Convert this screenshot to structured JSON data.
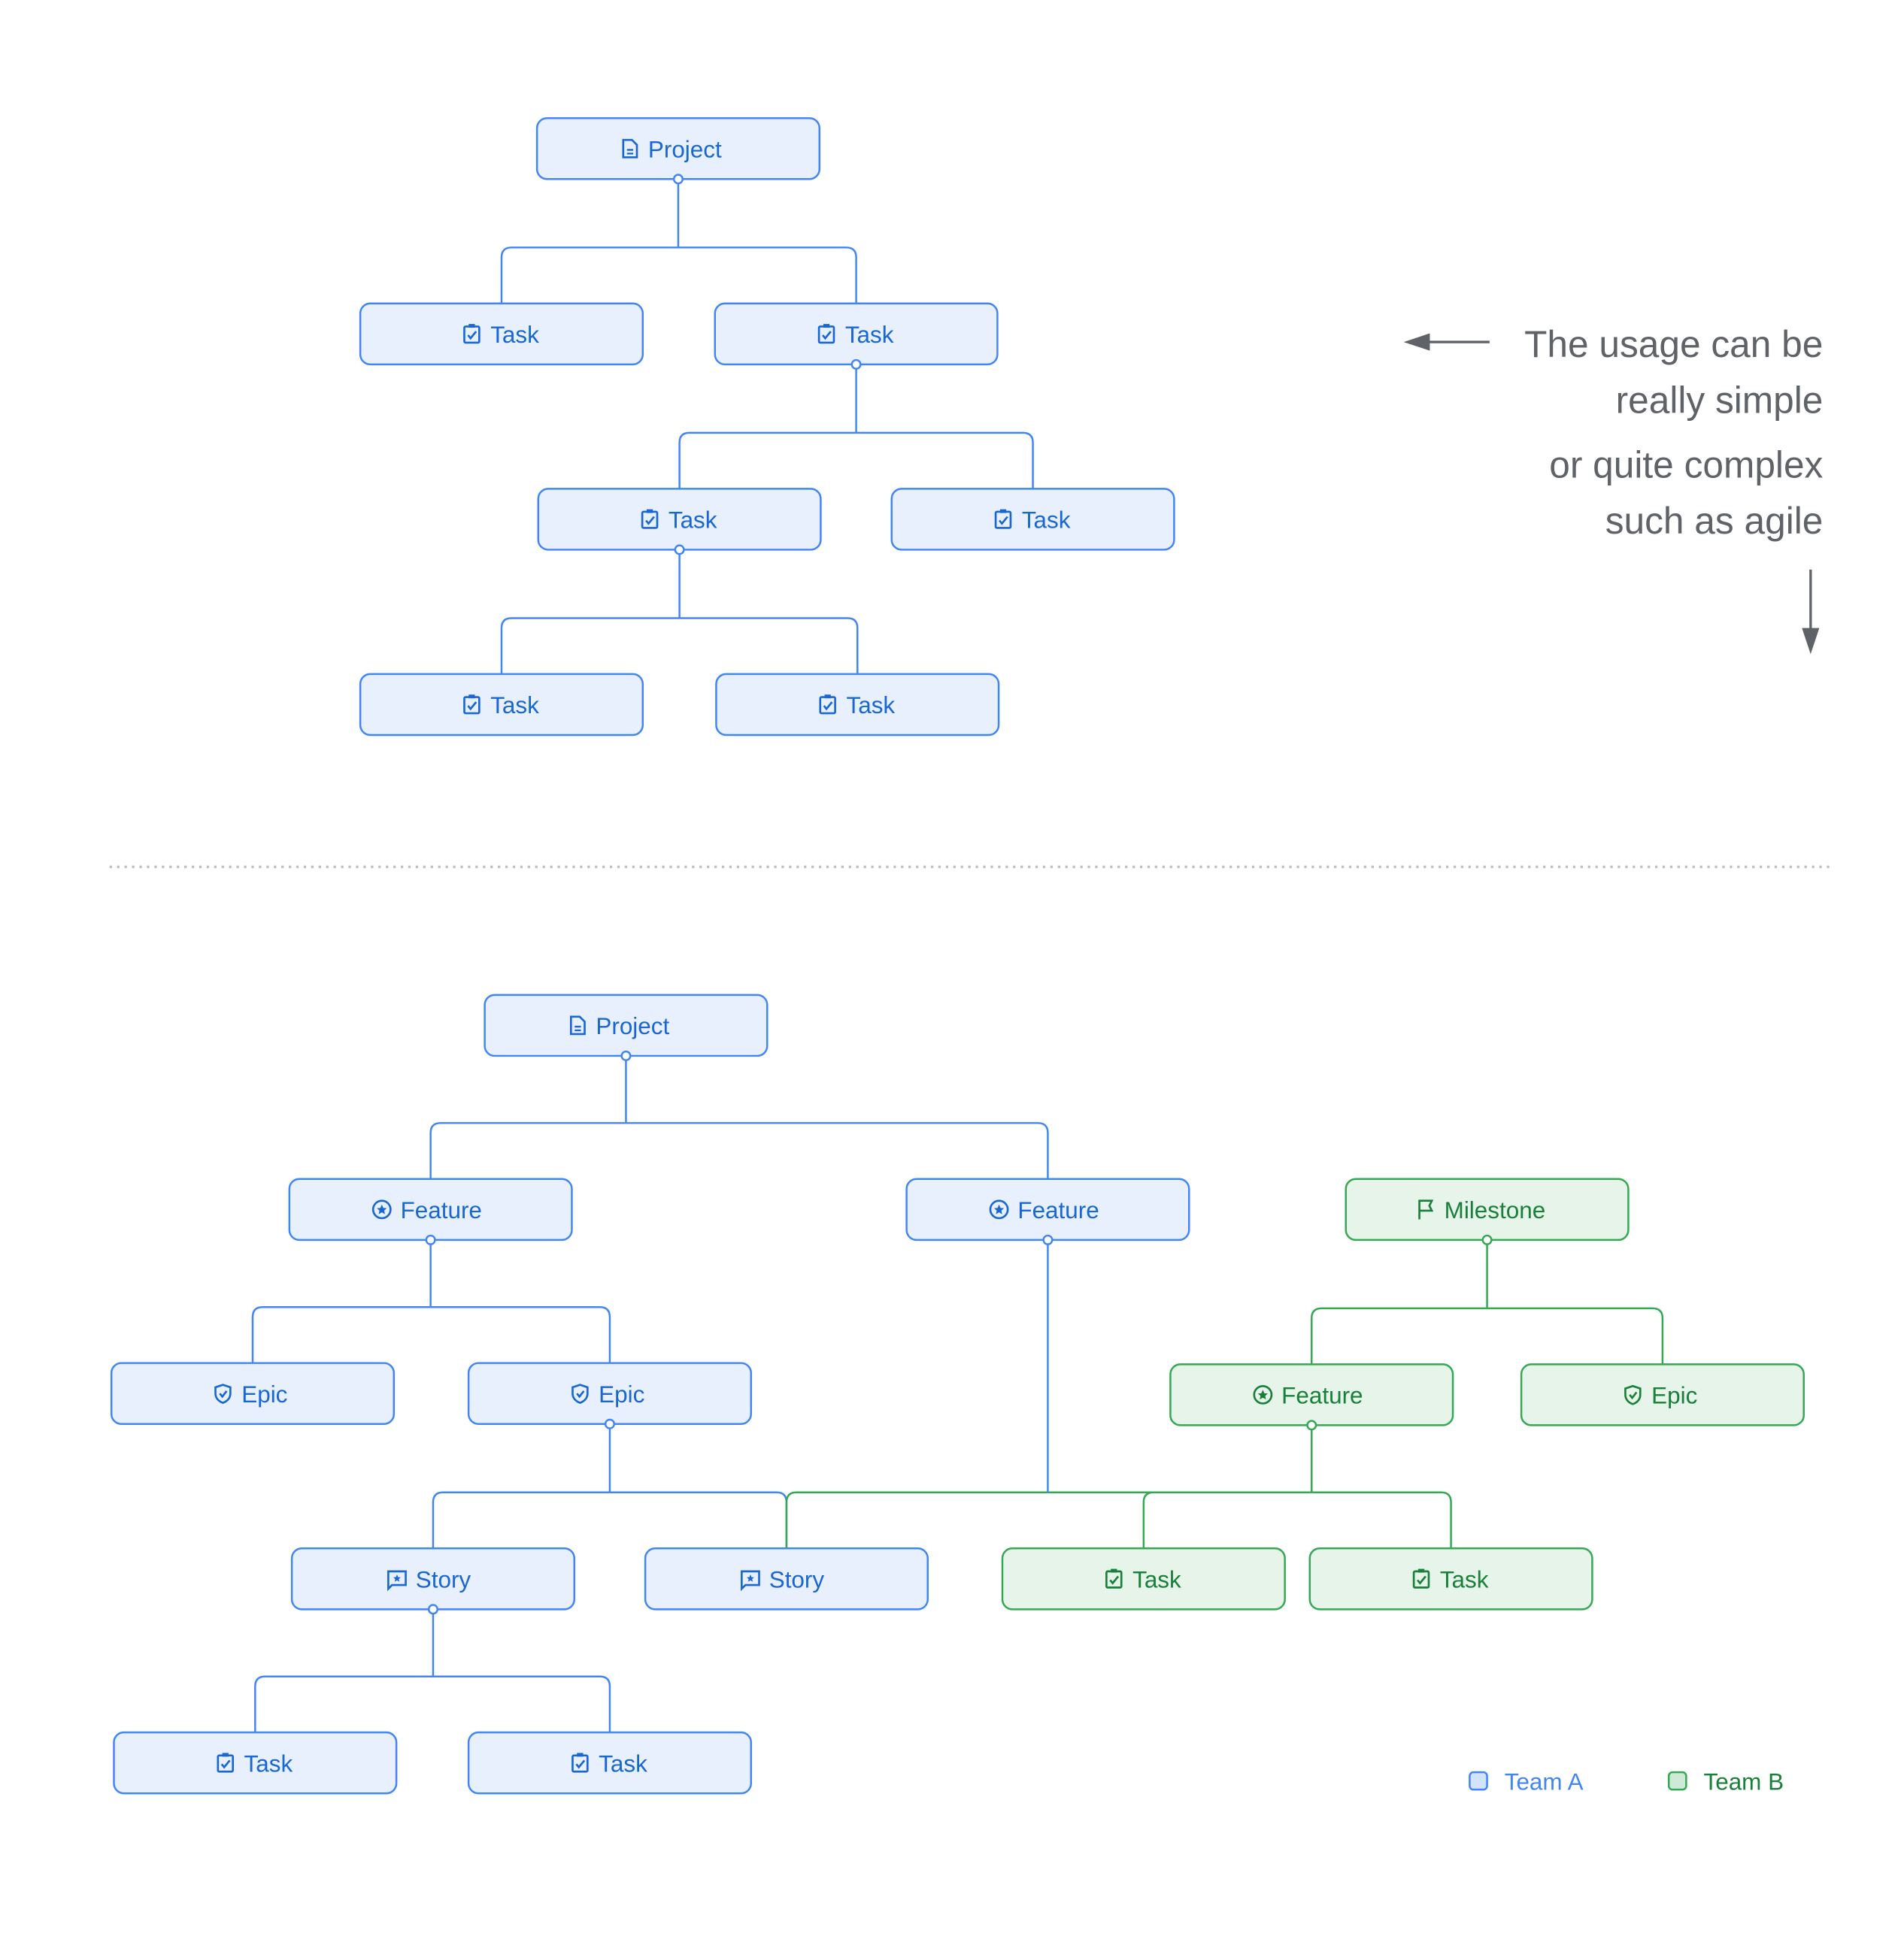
{
  "colors": {
    "team_a": {
      "border": "#4285f4",
      "fill": "#e8f0fe",
      "text": "#1967d2",
      "swatch": "#d2e3fc"
    },
    "team_b": {
      "border": "#34a853",
      "fill": "#e6f4ea",
      "text": "#188038",
      "swatch": "#ceead6"
    },
    "annotation": "#5f6368",
    "divider": "#bdc1c6"
  },
  "simple": {
    "nodes": [
      {
        "label": "Project",
        "icon": "document-icon",
        "team": "team_a",
        "parent": null
      },
      {
        "label": "Task",
        "icon": "task-check-icon",
        "team": "team_a",
        "parent": 0
      },
      {
        "label": "Task",
        "icon": "task-check-icon",
        "team": "team_a",
        "parent": 0
      },
      {
        "label": "Task",
        "icon": "task-check-icon",
        "team": "team_a",
        "parent": 2
      },
      {
        "label": "Task",
        "icon": "task-check-icon",
        "team": "team_a",
        "parent": 2
      },
      {
        "label": "Task",
        "icon": "task-check-icon",
        "team": "team_a",
        "parent": 3
      },
      {
        "label": "Task",
        "icon": "task-check-icon",
        "team": "team_a",
        "parent": 3
      }
    ]
  },
  "agile": {
    "nodes": [
      {
        "label": "Project",
        "icon": "document-icon",
        "team": "team_a",
        "parent": null
      },
      {
        "label": "Feature",
        "icon": "star-circle-icon",
        "team": "team_a",
        "parent": 0
      },
      {
        "label": "Feature",
        "icon": "star-circle-icon",
        "team": "team_a",
        "parent": 0
      },
      {
        "label": "Milestone",
        "icon": "flag-icon",
        "team": "team_b",
        "parent": null
      },
      {
        "label": "Epic",
        "icon": "shield-check-icon",
        "team": "team_a",
        "parent": 1
      },
      {
        "label": "Epic",
        "icon": "shield-check-icon",
        "team": "team_a",
        "parent": 1
      },
      {
        "label": "Feature",
        "icon": "star-circle-icon",
        "team": "team_b",
        "parent": 3
      },
      {
        "label": "Epic",
        "icon": "shield-check-icon",
        "team": "team_b",
        "parent": 3
      },
      {
        "label": "Story",
        "icon": "story-comment-icon",
        "team": "team_a",
        "parent": 5
      },
      {
        "label": "Story",
        "icon": "story-comment-icon",
        "team": "team_a",
        "parent": 5,
        "also_linked_from": 6
      },
      {
        "label": "Task",
        "icon": "task-check-icon",
        "team": "team_b",
        "parent": 6
      },
      {
        "label": "Task",
        "icon": "task-check-icon",
        "team": "team_b",
        "parent": 6
      },
      {
        "label": "Task",
        "icon": "task-check-icon",
        "team": "team_a",
        "parent": 8
      },
      {
        "label": "Task",
        "icon": "task-check-icon",
        "team": "team_a",
        "parent": 8
      }
    ],
    "feature_to_shared_bus": {
      "from": 2,
      "bus_of": 6
    }
  },
  "annotation": {
    "lines": [
      "The usage can be",
      "really simple",
      "or quite complex",
      "such as agile"
    ]
  },
  "legend": [
    {
      "label": "Team A",
      "team": "team_a"
    },
    {
      "label": "Team B",
      "team": "team_b"
    }
  ]
}
